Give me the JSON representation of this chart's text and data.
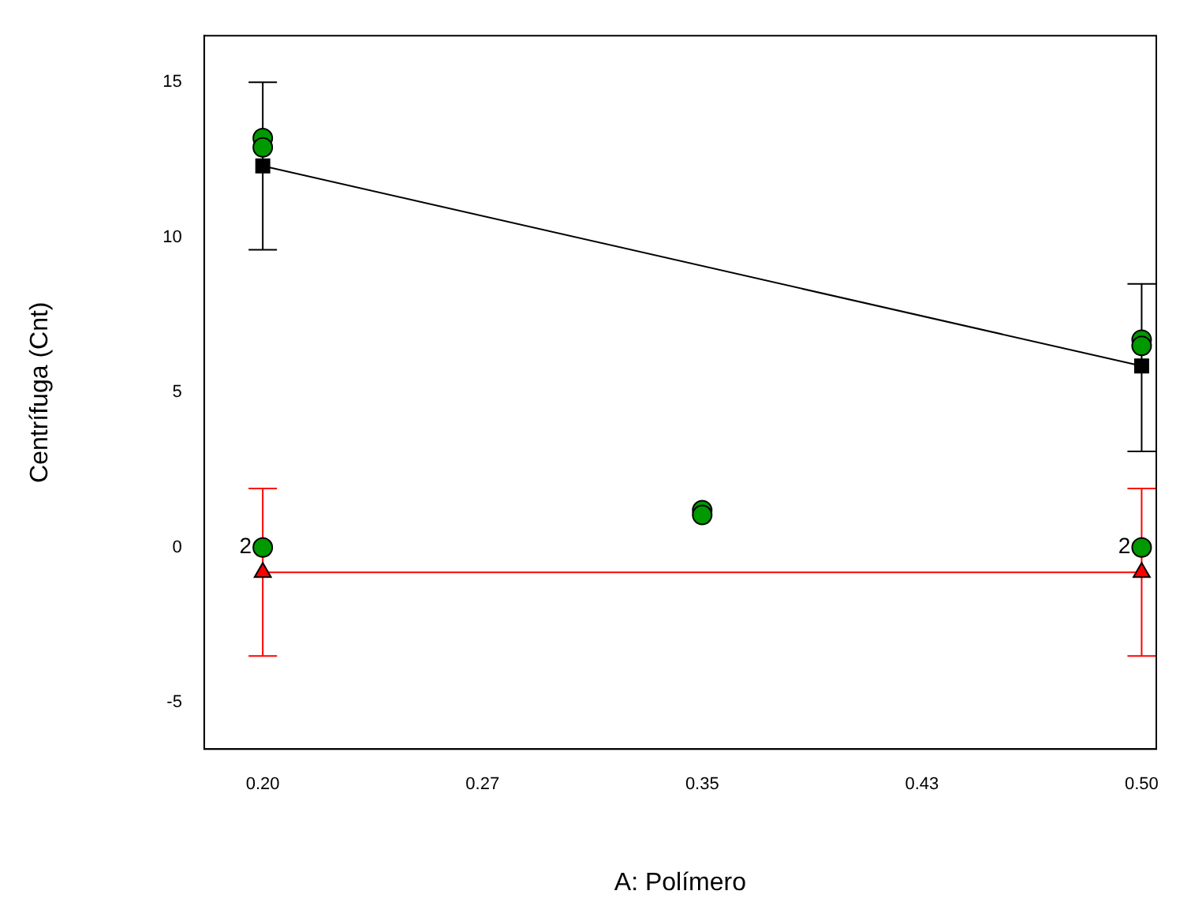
{
  "chart_data": {
    "type": "line",
    "xlabel": "A: Polímero",
    "ylabel": "Centrífuga (Cnt)",
    "xlim": [
      0.18,
      0.505
    ],
    "xticks": [
      {
        "value": 0.2,
        "label": "0.20"
      },
      {
        "value": 0.275,
        "label": "0.27"
      },
      {
        "value": 0.35,
        "label": "0.35"
      },
      {
        "value": 0.425,
        "label": "0.43"
      },
      {
        "value": 0.5,
        "label": "0.50"
      }
    ],
    "ylim": [
      -6.5,
      16.5
    ],
    "yticks": [
      -5,
      0,
      5,
      10,
      15
    ],
    "grid": false,
    "legend": false,
    "series": [
      {
        "type": "line",
        "color": "#000000",
        "marker": "square",
        "x": [
          0.2,
          0.5
        ],
        "values": [
          12.3,
          5.85
        ],
        "errors": [
          [
            9.6,
            15.0
          ],
          [
            3.1,
            8.5
          ]
        ]
      },
      {
        "type": "line",
        "color": "#ff0000",
        "marker": "triangle",
        "x": [
          0.2,
          0.5
        ],
        "values": [
          -0.8,
          -0.8
        ],
        "errors": [
          [
            -3.5,
            1.9
          ],
          [
            -3.5,
            1.9
          ]
        ]
      },
      {
        "type": "scatter",
        "color": "#009900",
        "marker": "circle",
        "x": [
          0.2,
          0.2,
          0.5,
          0.5,
          0.35,
          0.35,
          0.2,
          0.5
        ],
        "values": [
          13.2,
          12.9,
          6.7,
          6.5,
          1.2,
          1.05,
          0,
          0
        ]
      }
    ],
    "annotations": [
      {
        "text": "2",
        "x": 0.2,
        "y": 0
      },
      {
        "text": "2",
        "x": 0.5,
        "y": 0
      }
    ]
  }
}
